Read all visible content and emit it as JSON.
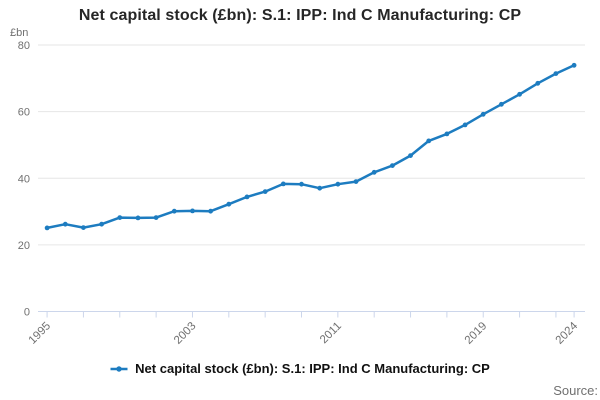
{
  "chart": {
    "title": "Net capital stock (£bn): S.1: IPP: Ind C Manufacturing: CP",
    "unit_label": "£bn"
  },
  "legend": {
    "label": "Net capital stock (£bn): S.1: IPP: Ind C Manufacturing: CP"
  },
  "footer": {
    "source_label": "Source:"
  },
  "chart_data": {
    "type": "line",
    "title": "Net capital stock (£bn): S.1: IPP: Ind C Manufacturing: CP",
    "series_name": "Net capital stock (£bn): S.1: IPP: Ind C Manufacturing: CP",
    "xlabel": "",
    "ylabel": "£bn",
    "x": [
      1995,
      1996,
      1997,
      1998,
      1999,
      2000,
      2001,
      2002,
      2003,
      2004,
      2005,
      2006,
      2007,
      2008,
      2009,
      2010,
      2011,
      2012,
      2013,
      2014,
      2015,
      2016,
      2017,
      2018,
      2019,
      2020,
      2021,
      2022,
      2023,
      2024
    ],
    "values": [
      25.1,
      26.2,
      25.2,
      26.2,
      28.2,
      28.1,
      28.2,
      30.1,
      30.2,
      30.1,
      32.2,
      34.4,
      36.0,
      38.3,
      38.2,
      37.0,
      38.2,
      39.0,
      41.8,
      43.8,
      46.8,
      51.2,
      53.3,
      56.0,
      59.2,
      62.2,
      65.2,
      68.5,
      71.4,
      73.9
    ],
    "ylim": [
      0,
      80
    ],
    "y_ticks": [
      0,
      20,
      40,
      60,
      80
    ],
    "x_tick_years": [
      1995,
      1997,
      1999,
      2001,
      2003,
      2005,
      2007,
      2009,
      2011,
      2013,
      2015,
      2017,
      2019,
      2021,
      2023,
      2024
    ],
    "x_labeled_years": [
      1995,
      2003,
      2011,
      2019,
      2024
    ],
    "x_range": [
      1994.5,
      2024.6
    ],
    "grid": true,
    "legend_position": "bottom",
    "line_color": "#1d7cc0",
    "grid_color": "#e6e6e6",
    "axis_color": "#ccd6eb",
    "tick_label_color": "#707070"
  }
}
